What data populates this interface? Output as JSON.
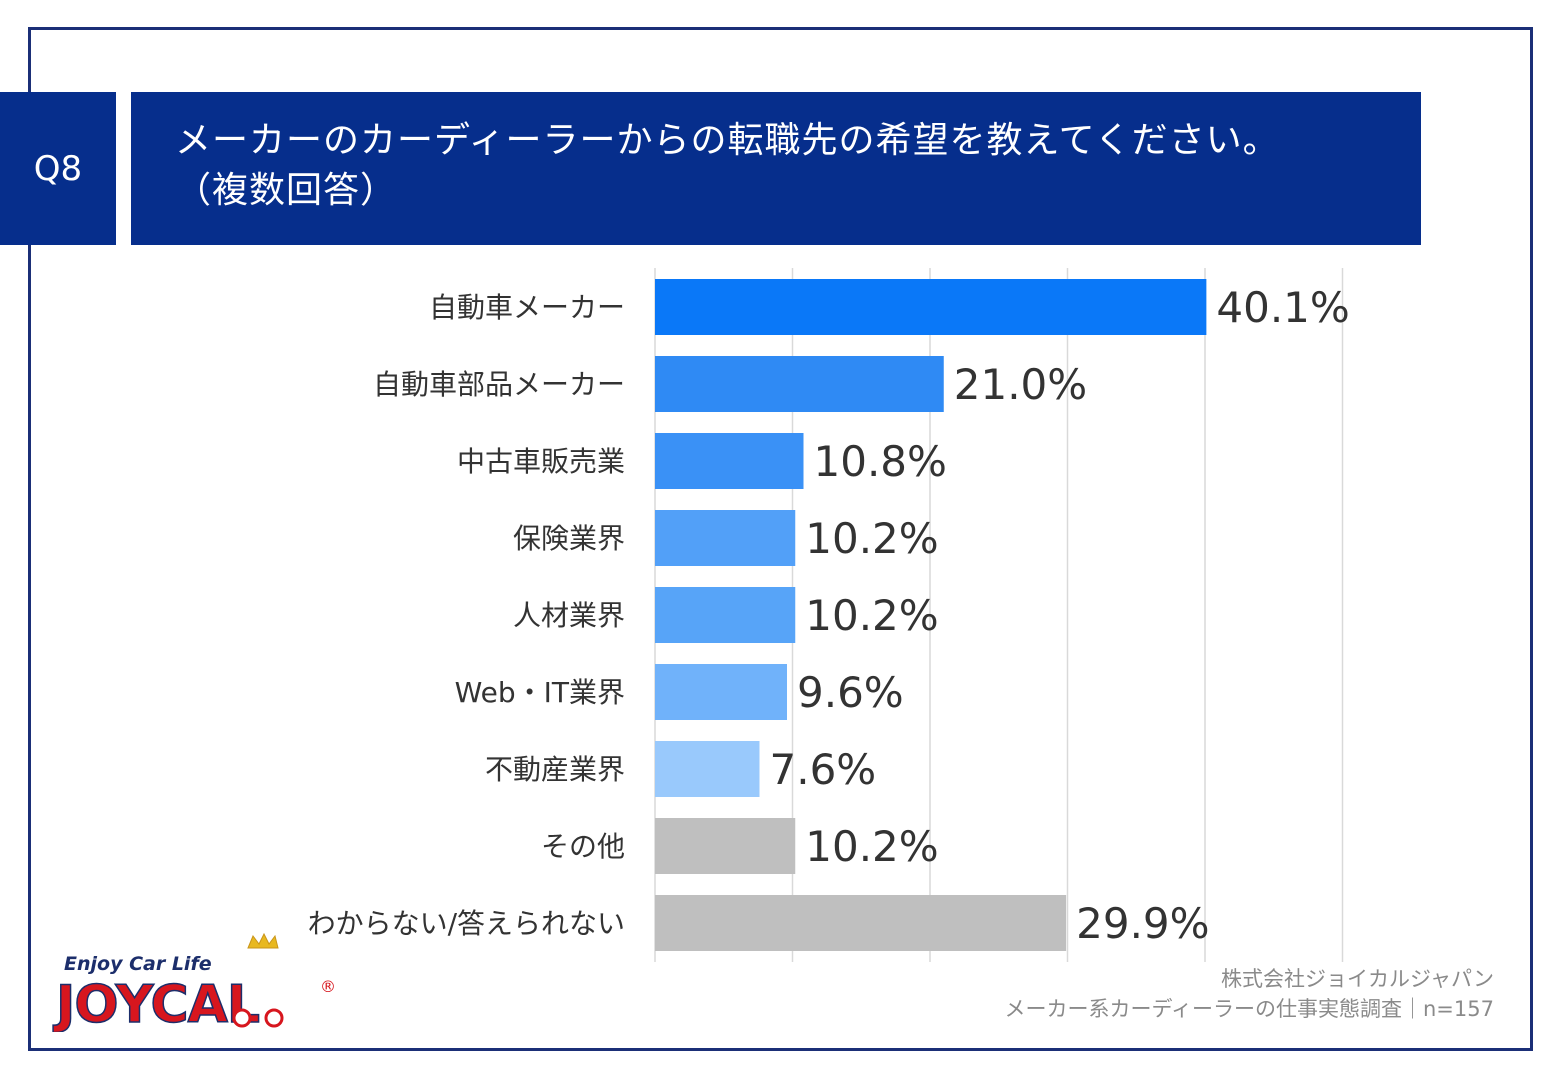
{
  "question": {
    "label": "Q8",
    "title_line1": "メーカーのカーディーラーからの転職先の希望を教えてください。",
    "title_line2": "（複数回答）"
  },
  "chart_data": {
    "type": "bar",
    "orientation": "horizontal",
    "categories": [
      "自動車メーカー",
      "自動車部品メーカー",
      "中古車販売業",
      "保険業界",
      "人材業界",
      "Web・IT業界",
      "不動産業界",
      "その他",
      "わからない/答えられない"
    ],
    "values": [
      40.1,
      21.0,
      10.8,
      10.2,
      10.2,
      9.6,
      7.6,
      10.2,
      29.9
    ],
    "value_labels": [
      "40.1%",
      "21.0%",
      "10.8%",
      "10.2%",
      "10.2%",
      "9.6%",
      "7.6%",
      "10.2%",
      "29.9%"
    ],
    "bar_colors": [
      "#0a78f8",
      "#2f8af4",
      "#3a91f6",
      "#52a0f8",
      "#57a4f8",
      "#70b2fa",
      "#99c9fc",
      "#bfbfbf",
      "#bfbfbf"
    ],
    "xlim": [
      0,
      50
    ],
    "grid": true,
    "unit": "%"
  },
  "footer": {
    "company": "株式会社ジョイカルジャパン",
    "survey": "メーカー系カーディーラーの仕事実態調査｜n=157"
  },
  "logo": {
    "tagline": "Enjoy Car Life",
    "brand": "JOYCAL"
  },
  "colors": {
    "navy": "#062e8c",
    "frame": "#1b2f77",
    "logo_red": "#d7161e",
    "logo_navy": "#1c2e6b",
    "logo_gold": "#e8b820"
  }
}
